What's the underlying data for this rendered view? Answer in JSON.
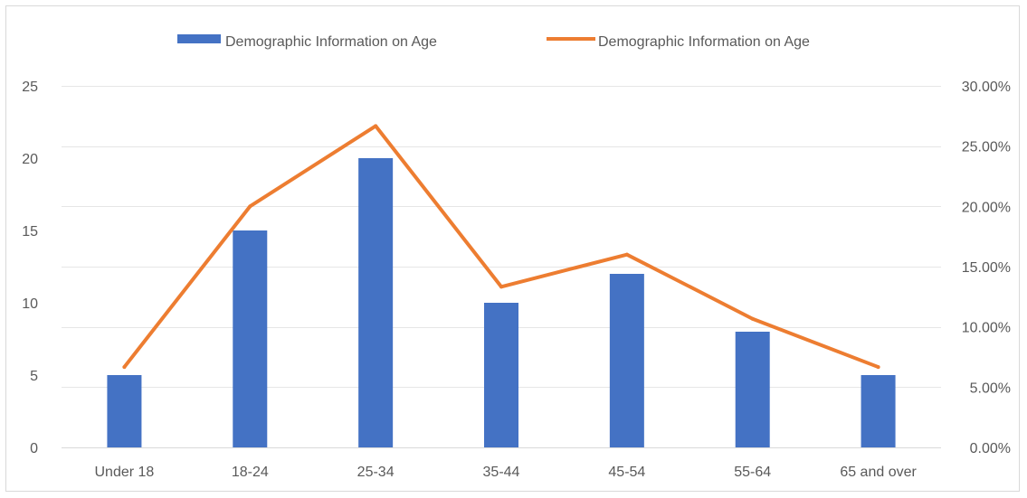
{
  "chart_data": {
    "type": "bar",
    "title": "",
    "categories": [
      "Under 18",
      "18-24",
      "25-34",
      "35-44",
      "45-54",
      "55-64",
      "65 and over"
    ],
    "series": [
      {
        "name": "Demographic Information on Age",
        "type": "bar",
        "axis": "left",
        "color": "#4472C4",
        "values": [
          5,
          15,
          20,
          10,
          12,
          8,
          5
        ]
      },
      {
        "name": "Demographic Information on Age",
        "type": "line",
        "axis": "right",
        "color": "#ED7D31",
        "values": [
          0.0667,
          0.2,
          0.2667,
          0.1333,
          0.16,
          0.1067,
          0.0667
        ]
      }
    ],
    "y_left": {
      "ylim": [
        0,
        25
      ],
      "ticks": [
        "0",
        "5",
        "10",
        "15",
        "20",
        "25"
      ],
      "tick_values": [
        0,
        5,
        10,
        15,
        20,
        25
      ]
    },
    "y_right": {
      "ylim": [
        0,
        0.3
      ],
      "ticks": [
        "0.00%",
        "5.00%",
        "10.00%",
        "15.00%",
        "20.00%",
        "25.00%",
        "30.00%"
      ],
      "tick_values": [
        0,
        0.05,
        0.1,
        0.15,
        0.2,
        0.25,
        0.3
      ]
    },
    "xlabel": "",
    "ylabel": "",
    "grid": true,
    "legend_position": "top-center"
  }
}
